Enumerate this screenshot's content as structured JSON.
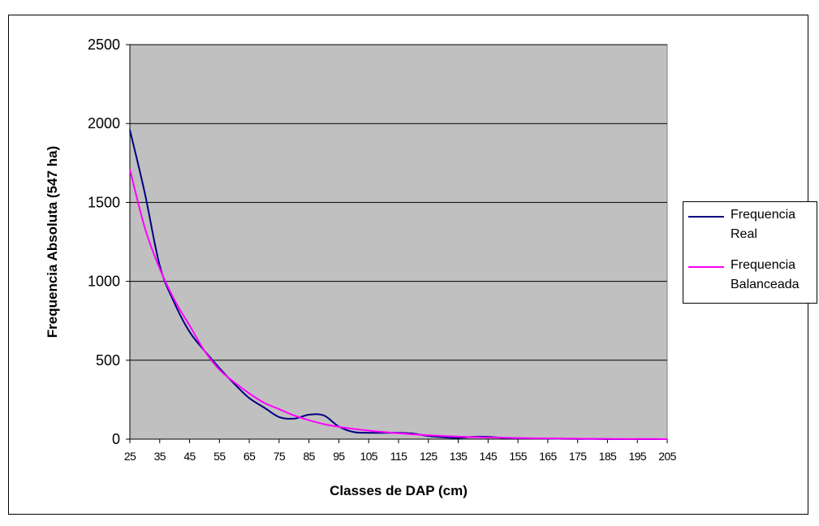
{
  "chart_data": {
    "type": "line",
    "xlabel": "Classes de DAP (cm)",
    "ylabel": "Frequencia Absoluta (547 ha)",
    "x": [
      25,
      30,
      35,
      40,
      45,
      50,
      55,
      60,
      65,
      70,
      75,
      80,
      85,
      90,
      95,
      100,
      105,
      110,
      115,
      120,
      125,
      130,
      135,
      140,
      145,
      150,
      155,
      160,
      165,
      170,
      175,
      180,
      185,
      190,
      195,
      200,
      205
    ],
    "x_ticks": [
      "25",
      "35",
      "45",
      "55",
      "65",
      "75",
      "85",
      "95",
      "105",
      "115",
      "125",
      "135",
      "145",
      "155",
      "165",
      "175",
      "185",
      "195",
      "205"
    ],
    "y_ticks": [
      "0",
      "500",
      "1000",
      "1500",
      "2000",
      "2500"
    ],
    "xlim": [
      25,
      205
    ],
    "ylim": [
      0,
      2500
    ],
    "grid": "horizontal",
    "plot_background": "#c0c0c0",
    "legend_position": "right",
    "series": [
      {
        "name": "Frequencia Real",
        "color": "#000080",
        "values": [
          1960,
          1560,
          1100,
          860,
          680,
          560,
          450,
          350,
          260,
          200,
          140,
          130,
          155,
          150,
          80,
          45,
          40,
          40,
          40,
          35,
          20,
          12,
          8,
          15,
          15,
          8,
          6,
          5,
          4,
          2,
          1,
          1,
          0,
          0,
          0,
          0,
          0
        ]
      },
      {
        "name": "Frequencia Balanceada",
        "color": "#ff00ff",
        "values": [
          1710,
          1340,
          1080,
          880,
          720,
          560,
          440,
          360,
          290,
          230,
          190,
          150,
          120,
          95,
          78,
          65,
          54,
          45,
          37,
          30,
          25,
          20,
          16,
          13,
          11,
          9,
          7,
          6,
          5,
          4,
          3,
          2,
          2,
          1,
          1,
          1,
          0
        ]
      }
    ]
  }
}
